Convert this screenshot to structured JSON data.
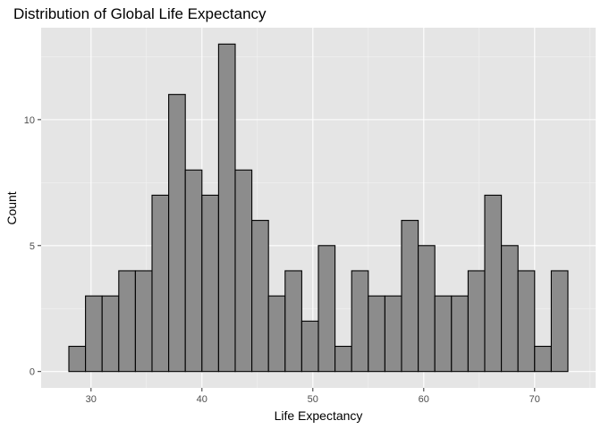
{
  "chart_data": {
    "type": "bar",
    "title": "Distribution of Global Life Expectancy",
    "xlabel": "Life Expectancy",
    "ylabel": "Count",
    "bin_width": 1.5,
    "bins_start": 28,
    "values": [
      1,
      3,
      3,
      4,
      4,
      7,
      11,
      8,
      7,
      13,
      8,
      6,
      3,
      4,
      2,
      5,
      1,
      4,
      3,
      3,
      6,
      5,
      3,
      3,
      4,
      7,
      5,
      4,
      1,
      4
    ],
    "xlim": [
      25.5,
      75.5
    ],
    "ylim": [
      -0.65,
      13.65
    ],
    "x_ticks": [
      30,
      40,
      50,
      60,
      70
    ],
    "y_ticks": [
      0,
      5,
      10
    ],
    "x_tick_labels": [
      "30",
      "40",
      "50",
      "60",
      "70"
    ],
    "y_tick_labels": [
      "0",
      "5",
      "10"
    ],
    "grid": true,
    "legend": "none",
    "colors": {
      "panel_background": "#e5e5e5",
      "grid_major": "#ffffff",
      "grid_minor": "#f2f2f2",
      "bar_fill": "#8c8c8c",
      "bar_stroke": "#000000",
      "tick_text": "#4d4d4d",
      "tick_mark": "#333333"
    }
  }
}
